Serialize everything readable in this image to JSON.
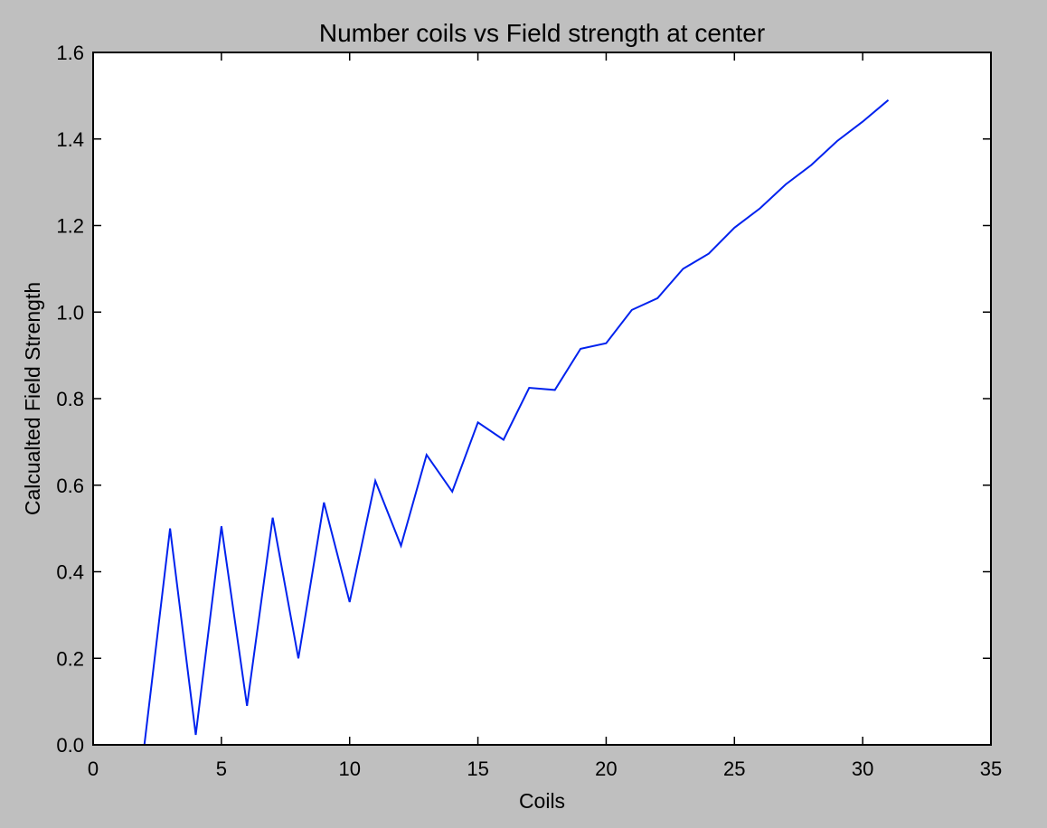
{
  "chart_data": {
    "type": "line",
    "title": "Number coils vs Field strength at center",
    "xlabel": "Coils",
    "ylabel": "Calcualted Field Strength",
    "xlim": [
      0,
      35
    ],
    "ylim": [
      0.0,
      1.6
    ],
    "xticks": [
      0,
      5,
      10,
      15,
      20,
      25,
      30,
      35
    ],
    "xtick_labels": [
      "0",
      "5",
      "10",
      "15",
      "20",
      "25",
      "30",
      "35"
    ],
    "yticks": [
      0.0,
      0.2,
      0.4,
      0.6,
      0.8,
      1.0,
      1.2,
      1.4,
      1.6
    ],
    "ytick_labels": [
      "0.0",
      "0.2",
      "0.4",
      "0.6",
      "0.8",
      "1.0",
      "1.2",
      "1.4",
      "1.6"
    ],
    "grid": false,
    "legend": false,
    "line_color": "#0022ee",
    "series": [
      {
        "x": [
          2,
          3,
          4,
          5,
          6,
          7,
          8,
          9,
          10,
          11,
          12,
          13,
          14,
          15,
          16,
          17,
          18,
          19,
          20,
          21,
          22,
          23,
          24,
          25,
          26,
          27,
          28,
          29,
          30,
          31
        ],
        "values": [
          0.0,
          0.5,
          0.023,
          0.505,
          0.09,
          0.525,
          0.2,
          0.56,
          0.33,
          0.61,
          0.46,
          0.67,
          0.585,
          0.745,
          0.705,
          0.825,
          0.82,
          0.915,
          0.928,
          1.005,
          1.032,
          1.1,
          1.135,
          1.195,
          1.24,
          1.295,
          1.34,
          1.395,
          1.44,
          1.49
        ]
      }
    ]
  }
}
